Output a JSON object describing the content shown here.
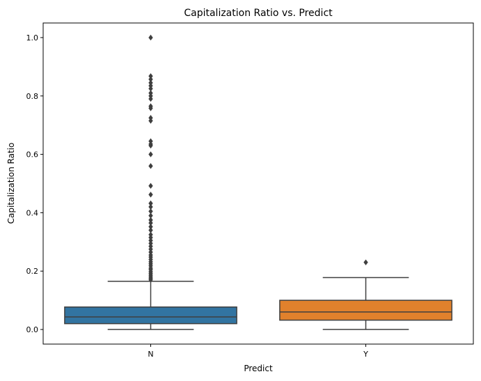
{
  "chart_data": {
    "type": "box",
    "title": "Capitalization Ratio vs. Predict",
    "xlabel": "Predict",
    "ylabel": "Capitalization Ratio",
    "categories": [
      "N",
      "Y"
    ],
    "ylim": [
      -0.05,
      1.05
    ],
    "yticks": [
      "0.0",
      "0.2",
      "0.4",
      "0.6",
      "0.8",
      "1.0"
    ],
    "boxes": [
      {
        "category": "N",
        "color": "#3274a1",
        "whisker_low": 0.0,
        "q1": 0.02,
        "median": 0.043,
        "q3": 0.077,
        "whisker_high": 0.165,
        "outliers": [
          1.0,
          0.868,
          0.857,
          0.845,
          0.835,
          0.825,
          0.81,
          0.8,
          0.79,
          0.765,
          0.758,
          0.725,
          0.715,
          0.645,
          0.635,
          0.63,
          0.6,
          0.56,
          0.492,
          0.462,
          0.432,
          0.42,
          0.405,
          0.39,
          0.375,
          0.365,
          0.352,
          0.34,
          0.325,
          0.315,
          0.305,
          0.295,
          0.285,
          0.275,
          0.265,
          0.255,
          0.248,
          0.24,
          0.232,
          0.225,
          0.218,
          0.21,
          0.205,
          0.198,
          0.192,
          0.186,
          0.18,
          0.175,
          0.17
        ]
      },
      {
        "category": "Y",
        "color": "#e1812c",
        "whisker_low": 0.0,
        "q1": 0.032,
        "median": 0.06,
        "q3": 0.1,
        "whisker_high": 0.178,
        "outliers": [
          0.23
        ]
      }
    ]
  }
}
